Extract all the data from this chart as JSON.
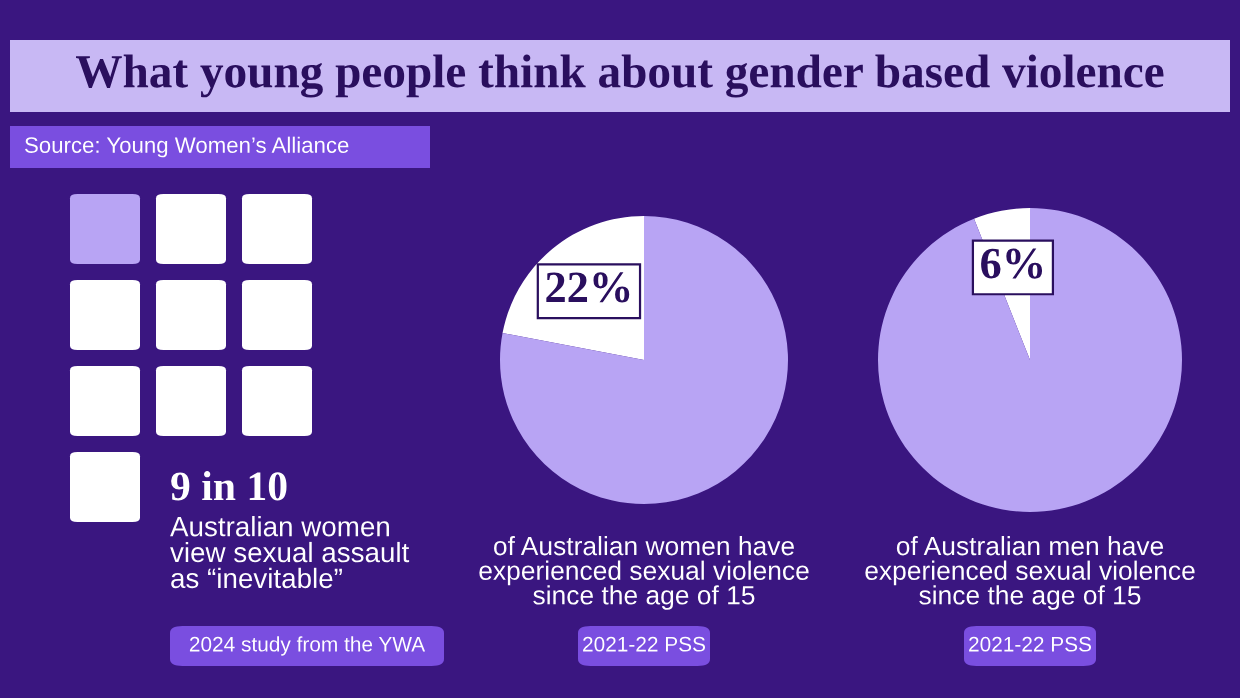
{
  "chart_data": [
    {
      "type": "other",
      "title": "What young people think about gender based violence",
      "subtitle": "Source: Young Women’s Alliance",
      "colors": [
        "#b8a4f4",
        "#ffffff"
      ],
      "annotations": [
        "9 in 10",
        "Australian women\nview sexual assault\nas “inevitable”",
        "2024 study from the YWA"
      ]
    },
    {
      "type": "pie",
      "categories": [
        null,
        null
      ],
      "values": [
        22,
        78
      ],
      "colors": [
        "#ffffff",
        "#b8a4f4"
      ],
      "value_labels": [
        "22%",
        null
      ],
      "annotations": [
        "of Australian women have\nexperienced sexual violence\nsince the age of 15",
        "2021-22 PSS"
      ]
    },
    {
      "type": "pie",
      "categories": [
        null,
        null
      ],
      "values": [
        6,
        94
      ],
      "colors": [
        "#ffffff",
        "#b8a4f4"
      ],
      "value_labels": [
        "6%",
        null
      ],
      "annotations": [
        "of Australian men have\nexperienced sexual violence\nsince the age of 15",
        "2021-22 PSS"
      ]
    }
  ]
}
